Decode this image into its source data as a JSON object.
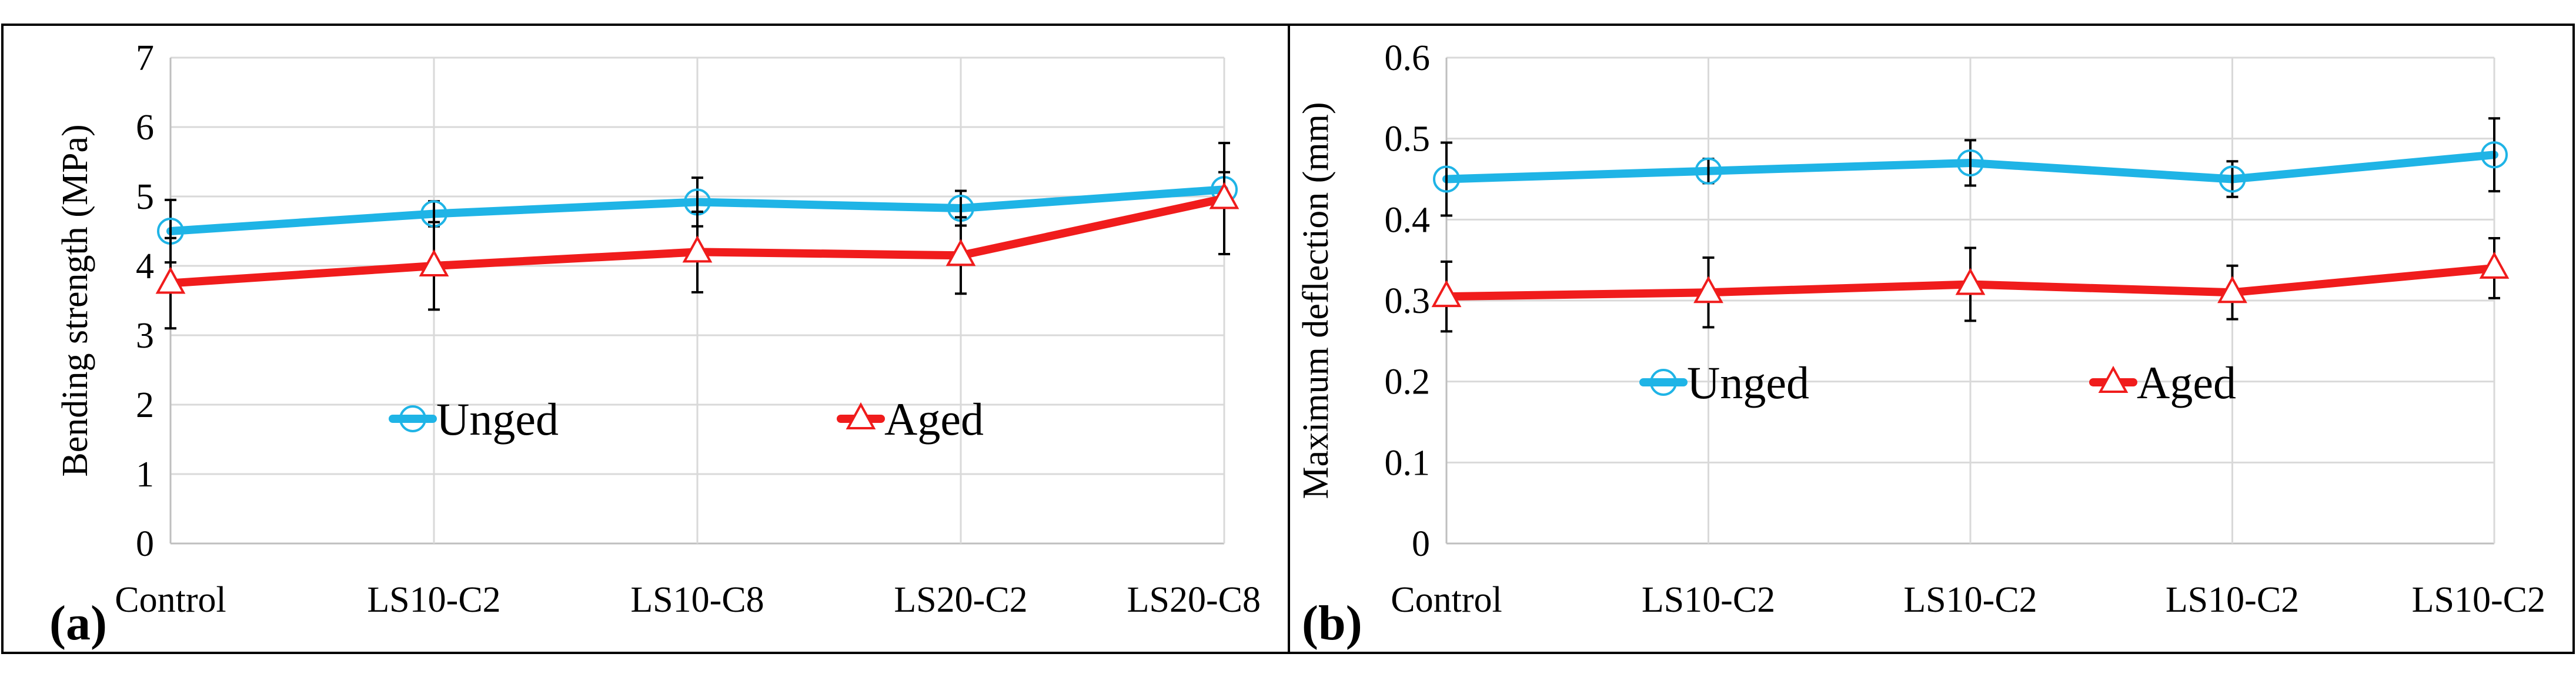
{
  "chart_data": [
    {
      "panel_label": "(a)",
      "type": "line",
      "ylabel": "Bending strength (MPa)",
      "xlabel": "",
      "ylim": [
        0,
        7
      ],
      "yticks": [
        "0",
        "1",
        "2",
        "3",
        "4",
        "5",
        "6",
        "7"
      ],
      "categories": [
        "Control",
        "LS10-C2",
        "LS10-C8",
        "LS20-C2",
        "LS20-C8"
      ],
      "grid": true,
      "legend": "center",
      "series": [
        {
          "name": "Unged",
          "color": "#1fb4e6",
          "marker": "circle",
          "values": [
            4.5,
            4.75,
            4.92,
            4.83,
            5.1
          ],
          "errors": [
            0.45,
            0.18,
            0.35,
            0.25,
            0.25
          ]
        },
        {
          "name": "Aged",
          "color": "#f01c1c",
          "marker": "triangle",
          "values": [
            3.75,
            4.0,
            4.2,
            4.15,
            4.97
          ],
          "errors": [
            0.65,
            0.63,
            0.58,
            0.55,
            0.8
          ]
        }
      ]
    },
    {
      "panel_label": "(b)",
      "type": "line",
      "ylabel": "Maximum deflection (mm)",
      "xlabel": "",
      "ylim": [
        0,
        0.6
      ],
      "yticks": [
        "0",
        "0.1",
        "0.2",
        "0.3",
        "0.4",
        "0.5",
        "0.6"
      ],
      "categories": [
        "Control",
        "LS10-C2",
        "LS10-C2",
        "LS10-C2",
        "LS10-C2"
      ],
      "grid": true,
      "legend": "center",
      "series": [
        {
          "name": "Unged",
          "color": "#1fb4e6",
          "marker": "circle",
          "values": [
            0.45,
            0.46,
            0.47,
            0.45,
            0.48
          ],
          "errors": [
            0.045,
            0.015,
            0.028,
            0.022,
            0.045
          ]
        },
        {
          "name": "Aged",
          "color": "#f01c1c",
          "marker": "triangle",
          "values": [
            0.305,
            0.31,
            0.32,
            0.31,
            0.34
          ],
          "errors": [
            0.043,
            0.043,
            0.045,
            0.033,
            0.037
          ]
        }
      ]
    }
  ]
}
